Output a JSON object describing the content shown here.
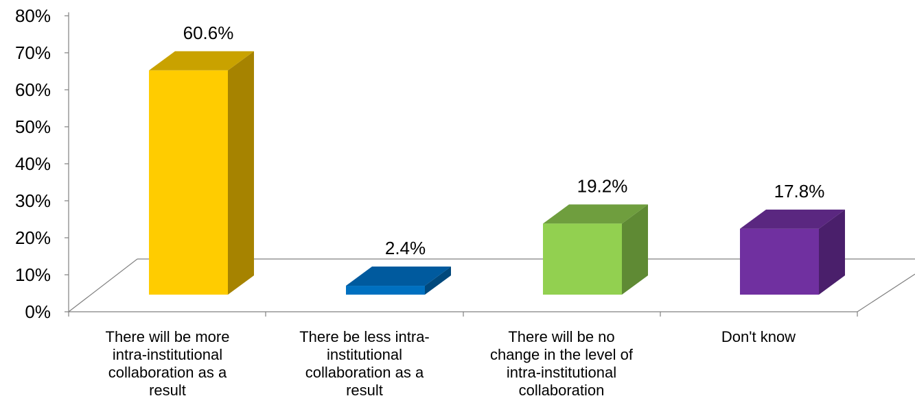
{
  "chart_data": {
    "type": "bar",
    "style": "3d",
    "categories": [
      "There will be more intra-institutional collaboration as a result",
      "There be less intra-institutional collaboration as a result",
      "There will be no change in the level of intra-institutional collaboration",
      "Don't know"
    ],
    "category_lines": [
      [
        "There will be more",
        "intra-institutional",
        "collaboration as a",
        "result"
      ],
      [
        "There be less intra-",
        "institutional",
        "collaboration as a",
        "result"
      ],
      [
        "There will be no",
        "change in the level of",
        "intra-institutional",
        "collaboration"
      ],
      [
        "Don't know"
      ]
    ],
    "values": [
      60.6,
      2.4,
      19.2,
      17.8
    ],
    "data_labels": [
      "60.6%",
      "2.4%",
      "19.2%",
      "17.8%"
    ],
    "colors": [
      {
        "front": "#FFCC00",
        "side": "#A68300",
        "top": "#C9A200"
      },
      {
        "front": "#0070C0",
        "side": "#00487C",
        "top": "#005A9E"
      },
      {
        "front": "#92D050",
        "side": "#5F8A34",
        "top": "#6F9E3E"
      },
      {
        "front": "#7030A0",
        "side": "#4A1F6B",
        "top": "#5A2780"
      }
    ],
    "ylim": [
      0,
      80
    ],
    "yticks": [
      "0%",
      "10%",
      "20%",
      "30%",
      "40%",
      "50%",
      "60%",
      "70%",
      "80%"
    ],
    "title": "",
    "xlabel": "",
    "ylabel": "",
    "grid": false,
    "legend": "none"
  }
}
